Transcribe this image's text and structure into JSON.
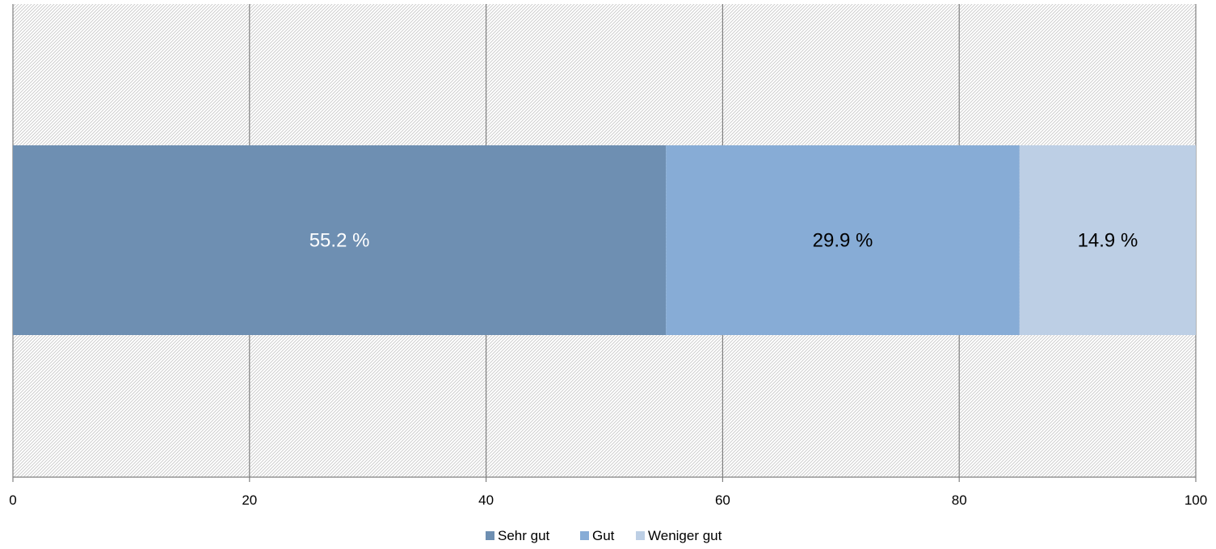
{
  "chart_data": {
    "type": "bar",
    "orientation": "horizontal",
    "stacked": true,
    "categories": [
      ""
    ],
    "series": [
      {
        "name": "Sehr gut",
        "values": [
          55.2
        ],
        "label": "55.2 %",
        "color": "#6e8fb2",
        "label_color": "#ffffff"
      },
      {
        "name": "Gut",
        "values": [
          29.9
        ],
        "label": "29.9 %",
        "color": "#87acd6",
        "label_color": "#000000"
      },
      {
        "name": "Weniger gut",
        "values": [
          14.9
        ],
        "label": "14.9 %",
        "color": "#bdcfe5",
        "label_color": "#000000"
      }
    ],
    "xlim": [
      0,
      100
    ],
    "xticks": [
      0,
      20,
      40,
      60,
      80,
      100
    ],
    "xtick_labels": [
      "0",
      "20",
      "40",
      "60",
      "80",
      "100"
    ],
    "title": "",
    "xlabel": "",
    "ylabel": "",
    "grid": true,
    "background": "hatched",
    "legend_position": "bottom"
  }
}
